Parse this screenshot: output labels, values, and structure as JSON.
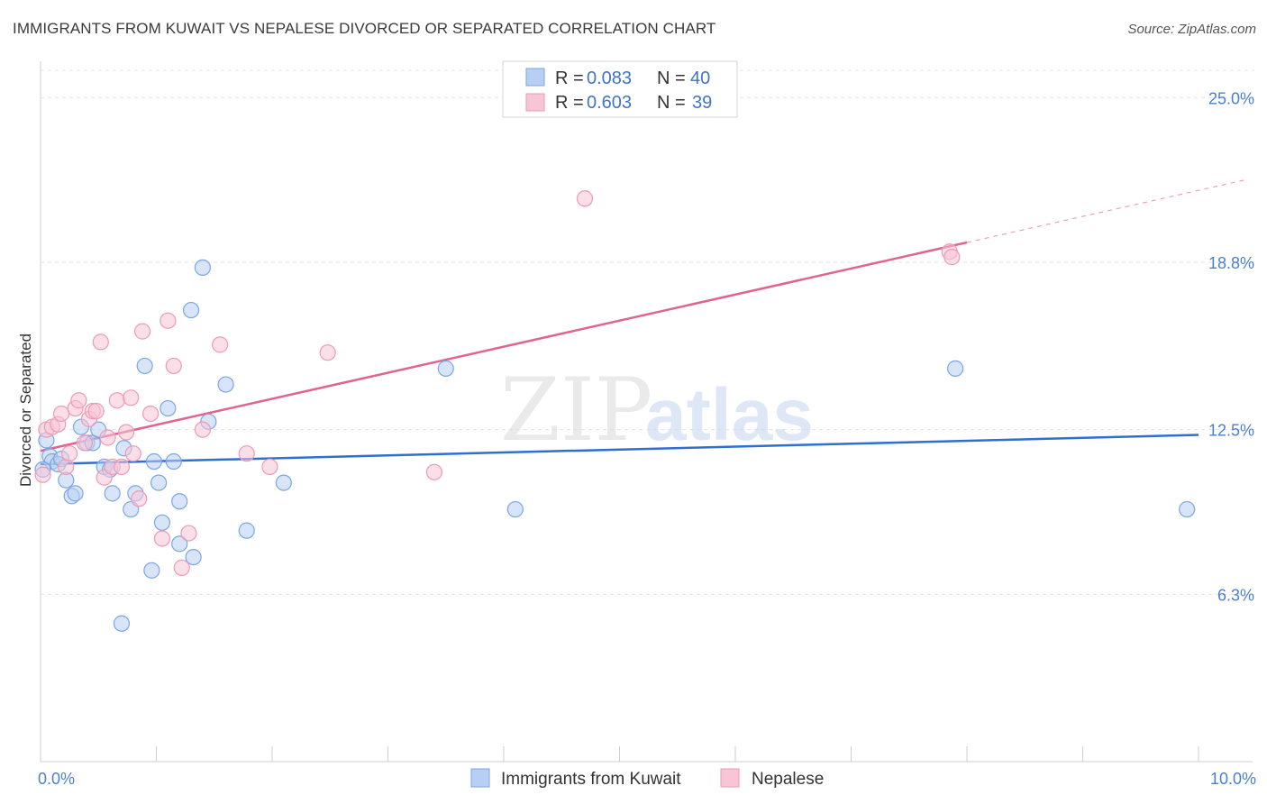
{
  "title": "IMMIGRANTS FROM KUWAIT VS NEPALESE DIVORCED OR SEPARATED CORRELATION CHART",
  "source": "Source: ZipAtlas.com",
  "watermark": {
    "zip": "ZIP",
    "atlas": "atlas"
  },
  "chart_data": {
    "type": "scatter",
    "ylabel": "Divorced or Separated",
    "xlim": [
      0,
      10
    ],
    "ylim": [
      0,
      26.3
    ],
    "x_ticks": [
      {
        "value": 0,
        "label": "0.0%"
      },
      {
        "value": 10,
        "label": "10.0%"
      }
    ],
    "y_ticks": [
      {
        "value": 6.3,
        "label": "6.3%"
      },
      {
        "value": 12.5,
        "label": "12.5%"
      },
      {
        "value": 18.8,
        "label": "18.8%"
      },
      {
        "value": 25.0,
        "label": "25.0%"
      }
    ],
    "legend": [
      {
        "r_label": "R = ",
        "r_value": "0.083",
        "n_label": "N = ",
        "n_value": "40"
      },
      {
        "r_label": "R = ",
        "r_value": "0.603",
        "n_label": "N = ",
        "n_value": "39"
      }
    ],
    "series": [
      {
        "name": "Immigrants from Kuwait",
        "color": "#7aa6e6",
        "fill": "#b8cff3",
        "line_color": "#2f6fd0",
        "trend": {
          "x0": 0.0,
          "y0": 11.2,
          "x1": 10.0,
          "y1": 12.3,
          "solid_until": 10.0
        },
        "points": [
          [
            0.05,
            12.1
          ],
          [
            0.08,
            11.5
          ],
          [
            0.1,
            11.3
          ],
          [
            0.15,
            11.2
          ],
          [
            0.18,
            11.4
          ],
          [
            0.22,
            10.6
          ],
          [
            0.27,
            10.0
          ],
          [
            0.3,
            10.1
          ],
          [
            0.35,
            12.6
          ],
          [
            0.4,
            12.0
          ],
          [
            0.45,
            12.0
          ],
          [
            0.5,
            12.5
          ],
          [
            0.55,
            11.1
          ],
          [
            0.6,
            11.0
          ],
          [
            0.62,
            10.1
          ],
          [
            0.7,
            5.2
          ],
          [
            0.72,
            11.8
          ],
          [
            0.78,
            9.5
          ],
          [
            0.82,
            10.1
          ],
          [
            0.9,
            14.9
          ],
          [
            0.96,
            7.2
          ],
          [
            0.98,
            11.3
          ],
          [
            1.02,
            10.5
          ],
          [
            1.05,
            9.0
          ],
          [
            1.1,
            13.3
          ],
          [
            1.15,
            11.3
          ],
          [
            1.2,
            8.2
          ],
          [
            1.2,
            9.8
          ],
          [
            1.3,
            17.0
          ],
          [
            1.32,
            7.7
          ],
          [
            1.4,
            18.6
          ],
          [
            1.45,
            12.8
          ],
          [
            1.6,
            14.2
          ],
          [
            1.78,
            8.7
          ],
          [
            2.1,
            10.5
          ],
          [
            3.5,
            14.8
          ],
          [
            4.1,
            9.5
          ],
          [
            7.9,
            14.8
          ],
          [
            9.9,
            9.5
          ],
          [
            0.02,
            11.0
          ]
        ]
      },
      {
        "name": "Nepalese",
        "color": "#ee9ab5",
        "fill": "#f7c5d5",
        "line_color": "#e0648f",
        "trend": {
          "x0": 0.0,
          "y0": 11.7,
          "x1": 10.4,
          "y1": 21.9,
          "solid_until": 8.0
        },
        "points": [
          [
            0.02,
            10.8
          ],
          [
            0.05,
            12.5
          ],
          [
            0.1,
            12.6
          ],
          [
            0.15,
            12.7
          ],
          [
            0.18,
            13.1
          ],
          [
            0.22,
            11.1
          ],
          [
            0.25,
            11.6
          ],
          [
            0.3,
            13.3
          ],
          [
            0.33,
            13.6
          ],
          [
            0.38,
            12.0
          ],
          [
            0.42,
            12.9
          ],
          [
            0.45,
            13.2
          ],
          [
            0.48,
            13.2
          ],
          [
            0.52,
            15.8
          ],
          [
            0.55,
            10.7
          ],
          [
            0.58,
            12.2
          ],
          [
            0.62,
            11.1
          ],
          [
            0.66,
            13.6
          ],
          [
            0.7,
            11.1
          ],
          [
            0.74,
            12.4
          ],
          [
            0.78,
            13.7
          ],
          [
            0.8,
            11.6
          ],
          [
            0.85,
            9.9
          ],
          [
            0.88,
            16.2
          ],
          [
            0.95,
            13.1
          ],
          [
            1.05,
            8.4
          ],
          [
            1.1,
            16.6
          ],
          [
            1.15,
            14.9
          ],
          [
            1.22,
            7.3
          ],
          [
            1.28,
            8.6
          ],
          [
            1.4,
            12.5
          ],
          [
            1.55,
            15.7
          ],
          [
            1.78,
            11.6
          ],
          [
            1.98,
            11.1
          ],
          [
            2.48,
            15.4
          ],
          [
            3.4,
            10.9
          ],
          [
            4.7,
            21.2
          ],
          [
            7.85,
            19.2
          ],
          [
            7.87,
            19.0
          ]
        ]
      }
    ],
    "watermark_text": "ZIPatlas"
  }
}
